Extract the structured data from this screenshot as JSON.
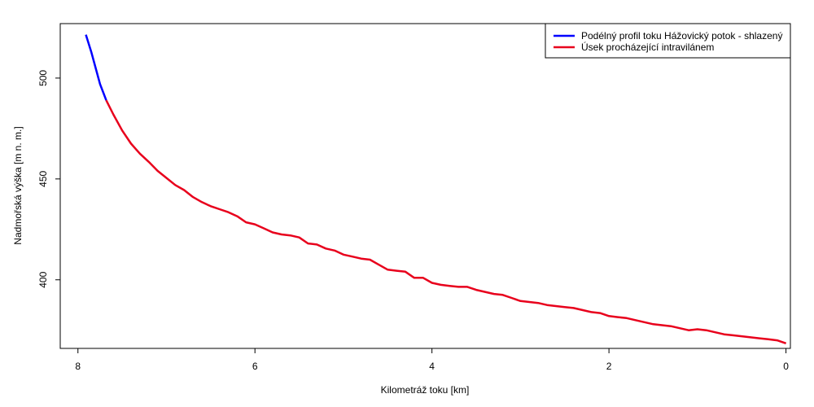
{
  "chart_data": {
    "type": "line",
    "xlabel": "Kilometráž toku [km]",
    "ylabel": "Nadmořská výška [m n. m.]",
    "xlim": [
      8.2,
      -0.05
    ],
    "ylim": [
      366,
      527
    ],
    "x_ticks": [
      8,
      6,
      4,
      2,
      0
    ],
    "y_ticks": [
      400,
      450,
      500
    ],
    "legend_position": "top-right",
    "series": [
      {
        "name": "Podélný profil toku Hážovický potok - shlazený",
        "color": "#0000ff",
        "points": [
          [
            7.91,
            521.5
          ],
          [
            7.85,
            513.0
          ],
          [
            7.8,
            505.0
          ],
          [
            7.75,
            497.0
          ],
          [
            7.68,
            489.0
          ]
        ]
      },
      {
        "name": "Úsek procházející intravilánem",
        "color": "#e8001c",
        "points": [
          [
            7.68,
            489.0
          ],
          [
            7.6,
            482.0
          ],
          [
            7.5,
            474.0
          ],
          [
            7.4,
            467.5
          ],
          [
            7.3,
            462.5
          ],
          [
            7.2,
            458.5
          ],
          [
            7.1,
            454.0
          ],
          [
            7.0,
            450.5
          ],
          [
            6.9,
            447.0
          ],
          [
            6.8,
            444.5
          ],
          [
            6.7,
            441.0
          ],
          [
            6.6,
            438.5
          ],
          [
            6.5,
            436.5
          ],
          [
            6.4,
            435.0
          ],
          [
            6.3,
            433.5
          ],
          [
            6.2,
            431.5
          ],
          [
            6.1,
            428.5
          ],
          [
            6.0,
            427.5
          ],
          [
            5.9,
            425.5
          ],
          [
            5.8,
            423.5
          ],
          [
            5.7,
            422.5
          ],
          [
            5.6,
            422.0
          ],
          [
            5.5,
            421.0
          ],
          [
            5.4,
            418.0
          ],
          [
            5.3,
            417.5
          ],
          [
            5.2,
            415.5
          ],
          [
            5.1,
            414.5
          ],
          [
            5.0,
            412.5
          ],
          [
            4.9,
            411.5
          ],
          [
            4.8,
            410.5
          ],
          [
            4.7,
            410.0
          ],
          [
            4.6,
            407.5
          ],
          [
            4.5,
            405.0
          ],
          [
            4.4,
            404.5
          ],
          [
            4.3,
            404.0
          ],
          [
            4.2,
            401.0
          ],
          [
            4.1,
            401.0
          ],
          [
            4.0,
            398.5
          ],
          [
            3.9,
            397.5
          ],
          [
            3.8,
            397.0
          ],
          [
            3.7,
            396.5
          ],
          [
            3.6,
            396.5
          ],
          [
            3.5,
            395.0
          ],
          [
            3.4,
            394.0
          ],
          [
            3.3,
            393.0
          ],
          [
            3.2,
            392.5
          ],
          [
            3.1,
            391.0
          ],
          [
            3.0,
            389.5
          ],
          [
            2.9,
            389.0
          ],
          [
            2.8,
            388.5
          ],
          [
            2.7,
            387.5
          ],
          [
            2.6,
            387.0
          ],
          [
            2.5,
            386.5
          ],
          [
            2.4,
            386.0
          ],
          [
            2.3,
            385.0
          ],
          [
            2.2,
            384.0
          ],
          [
            2.1,
            383.5
          ],
          [
            2.0,
            382.0
          ],
          [
            1.9,
            381.5
          ],
          [
            1.8,
            381.0
          ],
          [
            1.7,
            380.0
          ],
          [
            1.6,
            379.0
          ],
          [
            1.5,
            378.0
          ],
          [
            1.4,
            377.5
          ],
          [
            1.3,
            377.0
          ],
          [
            1.2,
            376.0
          ],
          [
            1.1,
            375.0
          ],
          [
            1.0,
            375.5
          ],
          [
            0.9,
            375.0
          ],
          [
            0.8,
            374.0
          ],
          [
            0.7,
            373.0
          ],
          [
            0.6,
            372.5
          ],
          [
            0.5,
            372.0
          ],
          [
            0.4,
            371.5
          ],
          [
            0.3,
            371.0
          ],
          [
            0.2,
            370.5
          ],
          [
            0.1,
            370.0
          ],
          [
            0.0,
            368.5
          ]
        ]
      }
    ]
  }
}
